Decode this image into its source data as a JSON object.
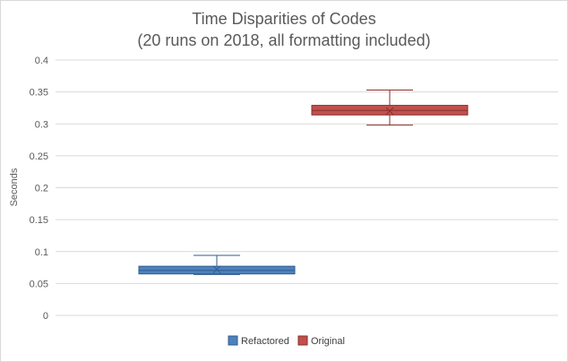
{
  "chart_data": {
    "type": "box",
    "title": "Time Disparities of Codes",
    "subtitle": "(20 runs on 2018, all formatting included)",
    "xlabel": "",
    "ylabel": "Seconds",
    "ylim": [
      0,
      0.4
    ],
    "yticks": [
      0,
      0.05,
      0.1,
      0.15,
      0.2,
      0.25,
      0.3,
      0.35,
      0.4
    ],
    "ytick_labels": [
      "0",
      "0.05",
      "0.1",
      "0.15",
      "0.2",
      "0.25",
      "0.3",
      "0.35",
      "0.4"
    ],
    "grid": "horizontal",
    "legend_position": "bottom",
    "series": [
      {
        "name": "Refactored",
        "color": "#4f81bd",
        "edge_color": "#2e5d8f",
        "min": 0.064,
        "q1": 0.065,
        "median": 0.0705,
        "q3": 0.077,
        "max": 0.094,
        "mean": 0.072
      },
      {
        "name": "Original",
        "color": "#c0504d",
        "edge_color": "#8b2e2b",
        "min": 0.298,
        "q1": 0.314,
        "median": 0.321,
        "q3": 0.329,
        "max": 0.353,
        "mean": 0.32
      }
    ]
  }
}
